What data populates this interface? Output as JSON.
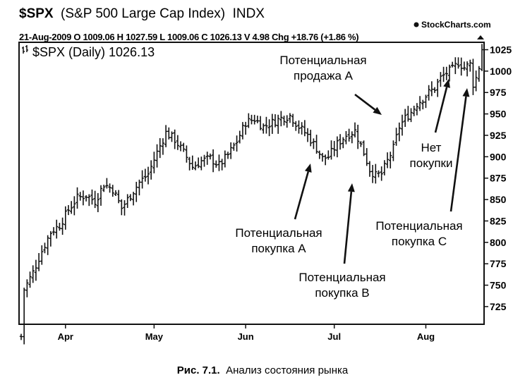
{
  "header": {
    "symbol": "$SPX",
    "name": "(S&P 500 Large Cap Index)",
    "exchange": "INDX",
    "brand": "StockCharts.com",
    "date": "21-Aug-2009",
    "open_label": "O",
    "open": "1009.06",
    "high_label": "H",
    "high": "1027.59",
    "low_label": "L",
    "low": "1009.06",
    "close_label": "C",
    "close": "1026.13",
    "volume_label": "V",
    "volume": "4.98",
    "change_label": "Chg",
    "change": "+18.76 (+1.86 %)"
  },
  "chart_title": "$SPX (Daily) 1026.13",
  "caption": {
    "prefix": "Рис. 7.1.",
    "text": "Анализ состояния рынка"
  },
  "chart_data": {
    "type": "ohlc",
    "y_ticks": [
      "1025",
      "1000",
      "975",
      "950",
      "925",
      "900",
      "875",
      "850",
      "825",
      "800",
      "775",
      "750",
      "725"
    ],
    "ylim": [
      706,
      1032
    ],
    "x_ticks": [
      {
        "label": "Apr",
        "day": 15
      },
      {
        "label": "May",
        "day": 45
      },
      {
        "label": "Jun",
        "day": 76
      },
      {
        "label": "Jul",
        "day": 106
      },
      {
        "label": "Aug",
        "day": 137
      }
    ],
    "xlim": [
      0,
      156
    ],
    "grid": false,
    "series_close_points": [
      [
        0,
        690
      ],
      [
        1,
        745
      ],
      [
        4,
        765
      ],
      [
        7,
        790
      ],
      [
        10,
        812
      ],
      [
        13,
        820
      ],
      [
        16,
        838
      ],
      [
        19,
        852
      ],
      [
        22,
        855
      ],
      [
        25,
        848
      ],
      [
        28,
        868
      ],
      [
        31,
        862
      ],
      [
        34,
        840
      ],
      [
        37,
        855
      ],
      [
        40,
        870
      ],
      [
        43,
        880
      ],
      [
        46,
        905
      ],
      [
        49,
        928
      ],
      [
        52,
        920
      ],
      [
        55,
        905
      ],
      [
        58,
        888
      ],
      [
        61,
        895
      ],
      [
        64,
        898
      ],
      [
        67,
        890
      ],
      [
        70,
        902
      ],
      [
        73,
        918
      ],
      [
        76,
        940
      ],
      [
        79,
        944
      ],
      [
        82,
        935
      ],
      [
        85,
        940
      ],
      [
        88,
        945
      ],
      [
        91,
        948
      ],
      [
        94,
        935
      ],
      [
        97,
        925
      ],
      [
        100,
        910
      ],
      [
        102,
        898
      ],
      [
        104,
        900
      ],
      [
        107,
        915
      ],
      [
        110,
        925
      ],
      [
        113,
        930
      ],
      [
        116,
        905
      ],
      [
        118,
        885
      ],
      [
        120,
        878
      ],
      [
        122,
        880
      ],
      [
        124,
        895
      ],
      [
        126,
        910
      ],
      [
        128,
        935
      ],
      [
        130,
        945
      ],
      [
        132,
        952
      ],
      [
        134,
        962
      ],
      [
        136,
        968
      ],
      [
        138,
        975
      ],
      [
        140,
        980
      ],
      [
        142,
        992
      ],
      [
        144,
        998
      ],
      [
        146,
        1002
      ],
      [
        148,
        1010
      ],
      [
        150,
        1004
      ],
      [
        152,
        1008
      ],
      [
        153,
        985
      ],
      [
        154,
        992
      ],
      [
        155,
        1005
      ],
      [
        156,
        1026
      ]
    ],
    "annotations": [
      {
        "lines": [
          "Потенциальная",
          "продажа А"
        ],
        "target": [
          131,
          946
        ]
      },
      {
        "lines": [
          "Потенциальная",
          "покупка А"
        ],
        "target": [
          104,
          900
        ]
      },
      {
        "lines": [
          "Потенциальная",
          "покупка В"
        ],
        "target": [
          119,
          875
        ]
      },
      {
        "lines": [
          "Нет",
          "покупки"
        ],
        "target": [
          150,
          1003
        ]
      },
      {
        "lines": [
          "Потенциальная",
          "покупка С"
        ],
        "target": [
          154,
          988
        ]
      }
    ]
  }
}
